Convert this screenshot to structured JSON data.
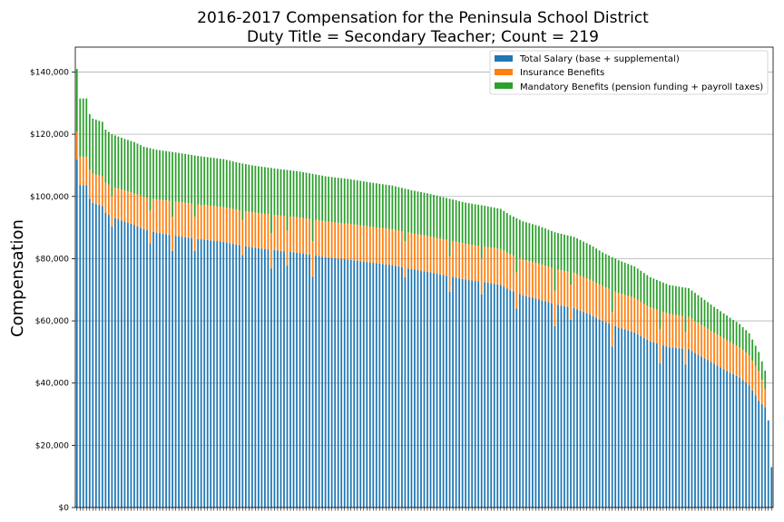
{
  "chart_data": {
    "type": "bar",
    "stacked": true,
    "title": [
      "2016-2017 Compensation for the Peninsula School District",
      "Duty Title = Secondary Teacher; Count = 219"
    ],
    "ylabel": "Compensation",
    "xlabel": "",
    "ylim": [
      0,
      148000
    ],
    "yticks": [
      0,
      20000,
      40000,
      60000,
      80000,
      100000,
      120000,
      140000
    ],
    "ytick_labels": [
      "$0",
      "$20,000",
      "$40,000",
      "$60,000",
      "$80,000",
      "$100,000",
      "$120,000",
      "$140,000"
    ],
    "grid": "horizontal",
    "legend_position": "top-right",
    "count": 219,
    "series": [
      {
        "name": "Total Salary (base + supplemental)",
        "color": "#1f77b4"
      },
      {
        "name": "Insurance Benefits",
        "color": "#ff7f0e"
      },
      {
        "name": "Mandatory Benefits (pension funding + payroll taxes)",
        "color": "#2ca02c"
      }
    ],
    "total_anchors": [
      [
        0,
        141000
      ],
      [
        1,
        131500
      ],
      [
        3,
        131500
      ],
      [
        4,
        126500
      ],
      [
        5,
        125000
      ],
      [
        8,
        124000
      ],
      [
        9,
        121500
      ],
      [
        11,
        120000
      ],
      [
        15,
        118500
      ],
      [
        18,
        117500
      ],
      [
        21,
        116000
      ],
      [
        25,
        115000
      ],
      [
        32,
        114000
      ],
      [
        38,
        113000
      ],
      [
        46,
        112000
      ],
      [
        50,
        111000
      ],
      [
        55,
        110000
      ],
      [
        62,
        109000
      ],
      [
        70,
        108000
      ],
      [
        78,
        106500
      ],
      [
        86,
        105500
      ],
      [
        92,
        104500
      ],
      [
        99,
        103500
      ],
      [
        105,
        102000
      ],
      [
        110,
        101000
      ],
      [
        116,
        99500
      ],
      [
        122,
        98000
      ],
      [
        128,
        97000
      ],
      [
        133,
        96000
      ],
      [
        136,
        94000
      ],
      [
        140,
        92000
      ],
      [
        145,
        90500
      ],
      [
        150,
        88500
      ],
      [
        156,
        87000
      ],
      [
        161,
        84500
      ],
      [
        165,
        82000
      ],
      [
        170,
        79500
      ],
      [
        175,
        77500
      ],
      [
        180,
        74000
      ],
      [
        186,
        71500
      ],
      [
        192,
        70500
      ],
      [
        196,
        67500
      ],
      [
        200,
        64500
      ],
      [
        205,
        61000
      ],
      [
        208,
        59000
      ],
      [
        211,
        56000
      ],
      [
        214,
        50000
      ],
      [
        216,
        44000
      ],
      [
        217,
        28000
      ],
      [
        218,
        13000
      ]
    ],
    "insurance_anchors": [
      [
        0,
        9000
      ],
      [
        30,
        11000
      ],
      [
        80,
        11500
      ],
      [
        140,
        11500
      ],
      [
        180,
        11000
      ],
      [
        200,
        10000
      ],
      [
        214,
        9500
      ],
      [
        216,
        6000
      ],
      [
        217,
        0
      ],
      [
        218,
        0
      ]
    ],
    "salary_dips": [
      [
        11,
        -3000
      ],
      [
        23,
        -4000
      ],
      [
        30,
        -5000
      ],
      [
        37,
        -4000
      ],
      [
        52,
        -3000
      ],
      [
        61,
        -6000
      ],
      [
        66,
        -4500
      ],
      [
        74,
        -7000
      ],
      [
        103,
        -3000
      ],
      [
        117,
        -5000
      ],
      [
        127,
        -4000
      ],
      [
        138,
        -5000
      ],
      [
        150,
        -7000
      ],
      [
        155,
        -4000
      ],
      [
        168,
        -7000
      ],
      [
        183,
        -6000
      ],
      [
        191,
        -5000
      ]
    ]
  }
}
